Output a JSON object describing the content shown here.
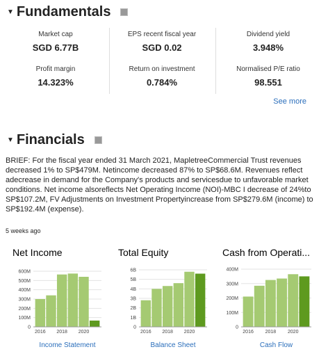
{
  "fundamentals": {
    "title": "Fundamentals",
    "items": [
      {
        "label": "Market cap",
        "value": "SGD 6.77B"
      },
      {
        "label": "EPS recent fiscal year",
        "value": "SGD 0.02"
      },
      {
        "label": "Dividend yield",
        "value": "3.948%"
      },
      {
        "label": "Profit margin",
        "value": "14.323%"
      },
      {
        "label": "Return on investment",
        "value": "0.784%"
      },
      {
        "label": "Normalised P/E ratio",
        "value": "98.551"
      }
    ],
    "see_more": "See more"
  },
  "financials": {
    "title": "Financials",
    "brief": "BRIEF: For the fiscal year ended 31 March 2021, MapletreeCommercial Trust revenues decreased 1% to SP$479M. Netincome decreased 87% to SP$68.6M. Revenues reflect adecrease in demand for the Company's products and servicesdue to unfavorable market conditions. Net income alsoreflects Net Operating Income (NOI)-MBC I decrease of 24%to SP$107.2M, FV Adjustments on Investment Propertyincrease from SP$279.6M (income) to SP$192.4M (expense).",
    "age": "5 weeks ago"
  },
  "charts": [
    {
      "type": "bar",
      "title": "Net Income",
      "categories": [
        "2016",
        null,
        "2018",
        null,
        "2020",
        null
      ],
      "values": [
        300,
        340,
        565,
        575,
        540,
        68
      ],
      "colors": [
        "#a5ca72",
        "#a5ca72",
        "#a5ca72",
        "#a5ca72",
        "#a5ca72",
        "#5e9a1f"
      ],
      "ylim": [
        0,
        600
      ],
      "yticks": [
        0,
        {
          "value": 100,
          "label": "100M"
        },
        {
          "value": 200,
          "label": "200M"
        },
        {
          "value": 300,
          "label": "300M"
        },
        {
          "value": 400,
          "label": "400M"
        },
        {
          "value": 500,
          "label": "500M"
        },
        {
          "value": 600,
          "label": "600M"
        }
      ],
      "link": "Income Statement"
    },
    {
      "type": "bar",
      "title": "Total Equity",
      "categories": [
        "2016",
        null,
        "2018",
        null,
        "2020",
        null
      ],
      "values": [
        2.8,
        4.0,
        4.3,
        4.6,
        5.8,
        5.6
      ],
      "colors": [
        "#a5ca72",
        "#a5ca72",
        "#a5ca72",
        "#a5ca72",
        "#a5ca72",
        "#5e9a1f"
      ],
      "ylim": [
        0,
        6
      ],
      "yticks": [
        0,
        {
          "value": 1,
          "label": "1B"
        },
        {
          "value": 2,
          "label": "2B"
        },
        {
          "value": 3,
          "label": "3B"
        },
        {
          "value": 4,
          "label": "4B"
        },
        {
          "value": 5,
          "label": "5B"
        },
        {
          "value": 6,
          "label": "6B"
        }
      ],
      "link": "Balance Sheet"
    },
    {
      "type": "bar",
      "title": "Cash from Operati...",
      "categories": [
        "2016",
        null,
        "2018",
        null,
        "2020",
        null
      ],
      "values": [
        210,
        285,
        325,
        335,
        365,
        350
      ],
      "colors": [
        "#a5ca72",
        "#a5ca72",
        "#a5ca72",
        "#a5ca72",
        "#a5ca72",
        "#5e9a1f"
      ],
      "ylim": [
        0,
        400
      ],
      "yticks": [
        0,
        {
          "value": 100,
          "label": "100M"
        },
        {
          "value": 200,
          "label": "200M"
        },
        {
          "value": 300,
          "label": "300M"
        },
        {
          "value": 400,
          "label": "400M"
        }
      ],
      "link": "Cash Flow"
    }
  ]
}
